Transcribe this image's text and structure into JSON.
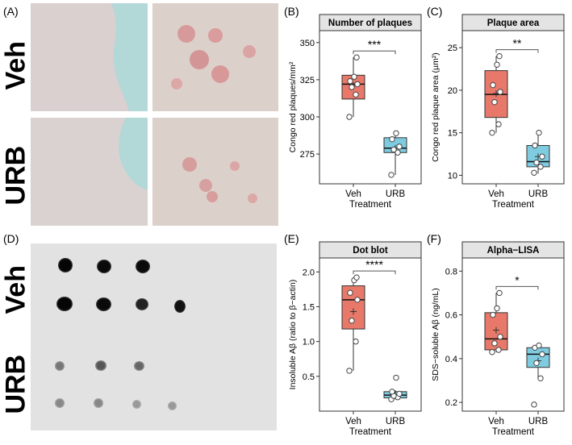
{
  "panel_labels": [
    "(A)",
    "(B)",
    "(C)",
    "(D)",
    "(E)",
    "(F)"
  ],
  "image_labels": {
    "micro_top": "Veh",
    "micro_bottom": "URB",
    "blot_top": "Veh",
    "blot_bottom": "URB"
  },
  "colors": {
    "veh": "#e8796a",
    "urb": "#7fcbe0"
  },
  "chart_data": [
    {
      "id": "B",
      "type": "box",
      "title": "Number of plaques",
      "xlabel": "Treatment",
      "ylabel": "Congo red plaques/mm²",
      "categories": [
        "Veh",
        "URB"
      ],
      "ylim": [
        255,
        358
      ],
      "yticks": [
        275,
        300,
        325,
        350
      ],
      "significance": "***",
      "boxes": [
        {
          "name": "Veh",
          "q1": 312,
          "median": 322,
          "q3": 328,
          "whisker_low": 300,
          "whisker_high": 340,
          "mean": 321,
          "points": [
            300,
            315,
            320,
            322,
            324,
            327,
            340
          ]
        },
        {
          "name": "URB",
          "q1": 276,
          "median": 279,
          "q3": 286,
          "whisker_low": 261,
          "whisker_high": 289,
          "mean": 279,
          "points": [
            261,
            276,
            278,
            280,
            285,
            289
          ]
        }
      ]
    },
    {
      "id": "C",
      "type": "box",
      "title": "Plaque area",
      "xlabel": "Treatment",
      "ylabel": "Congo red plaque area (µm²)",
      "categories": [
        "Veh",
        "URB"
      ],
      "ylim": [
        9,
        27
      ],
      "yticks": [
        10,
        15,
        20,
        25
      ],
      "significance": "**",
      "boxes": [
        {
          "name": "Veh",
          "q1": 16.8,
          "median": 19.5,
          "q3": 22.3,
          "whisker_low": 15,
          "whisker_high": 24,
          "mean": 19.6,
          "points": [
            15,
            16,
            18.6,
            19.8,
            20.6,
            23,
            24
          ]
        },
        {
          "name": "URB",
          "q1": 11,
          "median": 11.6,
          "q3": 13.5,
          "whisker_low": 10.2,
          "whisker_high": 15,
          "mean": 12.2,
          "points": [
            10.3,
            11,
            11.5,
            12.2,
            13.5,
            15
          ]
        }
      ]
    },
    {
      "id": "E",
      "type": "box",
      "title": "Dot blot",
      "xlabel": "Treatment",
      "ylabel": "Insoluble Aβ (ratio to β−actin)",
      "categories": [
        "Veh",
        "URB"
      ],
      "ylim": [
        0,
        2.2
      ],
      "yticks": [
        0.5,
        1.0,
        1.5,
        2.0
      ],
      "yticklabels": [
        "0.5",
        "1.0",
        "1.5",
        "2.0"
      ],
      "significance": "****",
      "boxes": [
        {
          "name": "Veh",
          "q1": 1.18,
          "median": 1.6,
          "q3": 1.8,
          "whisker_low": 0.58,
          "whisker_high": 1.92,
          "mean": 1.43,
          "points": [
            0.58,
            1.0,
            1.3,
            1.6,
            1.7,
            1.88,
            1.92
          ]
        },
        {
          "name": "URB",
          "q1": 0.19,
          "median": 0.23,
          "q3": 0.28,
          "whisker_low": 0.17,
          "whisker_high": 0.3,
          "mean": 0.23,
          "points": [
            0.17,
            0.2,
            0.22,
            0.25,
            0.28,
            0.48
          ]
        }
      ]
    },
    {
      "id": "F",
      "type": "box",
      "title": "Alpha−LISA",
      "xlabel": "Treatment",
      "ylabel": "SDS−soluble Aβ  (ng/mL)",
      "categories": [
        "Veh",
        "URB"
      ],
      "ylim": [
        0.16,
        0.86
      ],
      "yticks": [
        0.2,
        0.4,
        0.6,
        0.8
      ],
      "yticklabels": [
        "0.2",
        "0.4",
        "0.6",
        "0.8"
      ],
      "significance": "*",
      "boxes": [
        {
          "name": "Veh",
          "q1": 0.44,
          "median": 0.49,
          "q3": 0.61,
          "whisker_low": 0.43,
          "whisker_high": 0.7,
          "mean": 0.53,
          "points": [
            0.43,
            0.44,
            0.47,
            0.5,
            0.6,
            0.63,
            0.7
          ]
        },
        {
          "name": "URB",
          "q1": 0.36,
          "median": 0.42,
          "q3": 0.45,
          "whisker_low": 0.31,
          "whisker_high": 0.46,
          "mean": 0.39,
          "points": [
            0.19,
            0.31,
            0.38,
            0.42,
            0.45,
            0.46
          ]
        }
      ]
    }
  ]
}
